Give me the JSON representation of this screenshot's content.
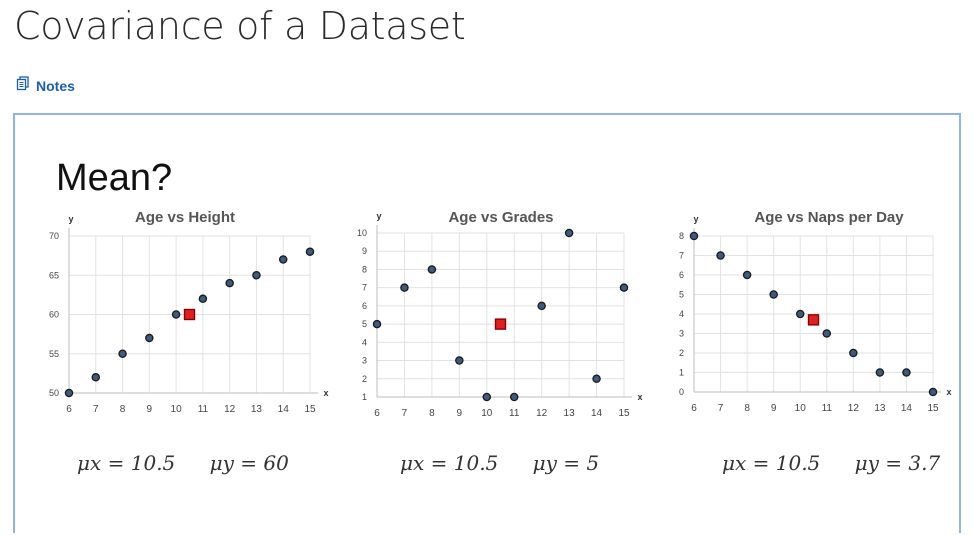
{
  "page": {
    "title": "Covariance of a Dataset",
    "notes_label": "Notes",
    "notes_icon": "notes-document-icon",
    "link_color": "#1a5fb4",
    "frame_border_color": "#8fb2e8"
  },
  "slide": {
    "heading": "Mean?",
    "formulas": [
      {
        "mx": "μx = 10.5",
        "my": "μy = 60"
      },
      {
        "mx": "μx = 10.5",
        "my": "μy = 5"
      },
      {
        "mx": "μx = 10.5",
        "my": "μy = 3.7"
      }
    ]
  },
  "chart_data": [
    {
      "type": "scatter",
      "title": "Age vs Height",
      "xlabel": "x",
      "ylabel": "y",
      "xlim": [
        6,
        15
      ],
      "ylim": [
        50,
        70
      ],
      "xticks": [
        6,
        7,
        8,
        9,
        10,
        11,
        12,
        13,
        14,
        15
      ],
      "yticks": [
        50,
        55,
        60,
        65,
        70
      ],
      "grid": true,
      "points": [
        [
          6,
          50
        ],
        [
          7,
          52
        ],
        [
          8,
          55
        ],
        [
          9,
          57
        ],
        [
          10,
          60
        ],
        [
          11,
          62
        ],
        [
          12,
          64
        ],
        [
          13,
          65
        ],
        [
          14,
          67
        ],
        [
          15,
          68
        ]
      ],
      "mean_point": [
        10.5,
        60
      ],
      "point_color": "#3d5a80",
      "mean_color": "#e02020"
    },
    {
      "type": "scatter",
      "title": "Age vs Grades",
      "xlabel": "x",
      "ylabel": "y",
      "xlim": [
        6,
        15
      ],
      "ylim": [
        1,
        10
      ],
      "xticks": [
        6,
        7,
        8,
        9,
        10,
        11,
        12,
        13,
        14,
        15
      ],
      "yticks": [
        1,
        2,
        3,
        4,
        5,
        6,
        7,
        8,
        9,
        10
      ],
      "grid": true,
      "points": [
        [
          6,
          5
        ],
        [
          7,
          7
        ],
        [
          8,
          8
        ],
        [
          9,
          3
        ],
        [
          10,
          1
        ],
        [
          11,
          1
        ],
        [
          12,
          6
        ],
        [
          13,
          10
        ],
        [
          14,
          2
        ],
        [
          15,
          7
        ]
      ],
      "mean_point": [
        10.5,
        5
      ],
      "point_color": "#3d5a80",
      "mean_color": "#e02020"
    },
    {
      "type": "scatter",
      "title": "Age vs Naps per Day",
      "xlabel": "x",
      "ylabel": "y",
      "xlim": [
        6,
        15
      ],
      "ylim": [
        0,
        8
      ],
      "xticks": [
        6,
        7,
        8,
        9,
        10,
        11,
        12,
        13,
        14,
        15
      ],
      "yticks": [
        0,
        1,
        2,
        3,
        4,
        5,
        6,
        7,
        8
      ],
      "grid": true,
      "points": [
        [
          6,
          8
        ],
        [
          7,
          7
        ],
        [
          8,
          6
        ],
        [
          9,
          5
        ],
        [
          10,
          4
        ],
        [
          11,
          3
        ],
        [
          12,
          2
        ],
        [
          13,
          1
        ],
        [
          14,
          1
        ],
        [
          15,
          0
        ]
      ],
      "mean_point": [
        10.5,
        3.7
      ],
      "point_color": "#3d5a80",
      "mean_color": "#e02020"
    }
  ]
}
